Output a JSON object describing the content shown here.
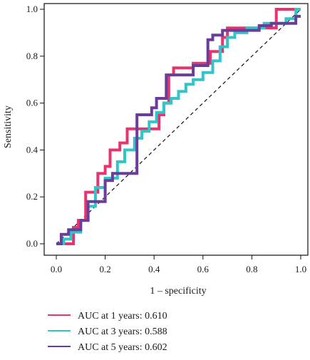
{
  "chart_data": {
    "type": "line",
    "title": "",
    "xlabel": "1 – specificity",
    "ylabel": "Sensitivity",
    "xlim": [
      0.0,
      1.0
    ],
    "ylim": [
      0.0,
      1.0
    ],
    "x_ticks": [
      "0.0",
      "0.2",
      "0.4",
      "0.6",
      "0.8",
      "1.0"
    ],
    "y_ticks": [
      "0.0",
      "0.2",
      "0.4",
      "0.6",
      "0.8",
      "1.0"
    ],
    "grid": false,
    "legend_position": "bottom-left, below plot",
    "reference_line": {
      "style": "dashed",
      "from": [
        0,
        0
      ],
      "to": [
        1,
        1
      ],
      "color": "#111111"
    },
    "series": [
      {
        "name": "AUC at 1 years: 0.610",
        "color": "#e8336d",
        "x": [
          0,
          0.07,
          0.07,
          0.09,
          0.09,
          0.12,
          0.12,
          0.17,
          0.17,
          0.2,
          0.2,
          0.22,
          0.22,
          0.26,
          0.26,
          0.29,
          0.29,
          0.42,
          0.42,
          0.44,
          0.44,
          0.46,
          0.46,
          0.48,
          0.48,
          0.56,
          0.56,
          0.63,
          0.63,
          0.68,
          0.68,
          0.7,
          0.7,
          0.9,
          0.9,
          1.0,
          1.0
        ],
        "y": [
          0,
          0,
          0.07,
          0.07,
          0.1,
          0.1,
          0.22,
          0.22,
          0.3,
          0.3,
          0.33,
          0.33,
          0.4,
          0.4,
          0.43,
          0.43,
          0.49,
          0.49,
          0.55,
          0.55,
          0.6,
          0.6,
          0.72,
          0.72,
          0.75,
          0.75,
          0.77,
          0.77,
          0.82,
          0.82,
          0.88,
          0.88,
          0.92,
          0.92,
          1.0,
          1.0,
          1.0
        ]
      },
      {
        "name": "AUC at 3 years: 0.588",
        "color": "#2fc5c9",
        "x": [
          0,
          0.03,
          0.03,
          0.06,
          0.06,
          0.1,
          0.1,
          0.13,
          0.13,
          0.16,
          0.16,
          0.2,
          0.2,
          0.25,
          0.25,
          0.28,
          0.28,
          0.32,
          0.32,
          0.35,
          0.35,
          0.38,
          0.38,
          0.41,
          0.41,
          0.44,
          0.44,
          0.47,
          0.47,
          0.5,
          0.5,
          0.53,
          0.53,
          0.56,
          0.56,
          0.6,
          0.6,
          0.64,
          0.64,
          0.67,
          0.67,
          0.7,
          0.7,
          0.73,
          0.73,
          0.78,
          0.78,
          0.85,
          0.85,
          0.94,
          0.94,
          0.98,
          0.98,
          1.0
        ],
        "y": [
          0,
          0,
          0.02,
          0.02,
          0.05,
          0.05,
          0.1,
          0.1,
          0.16,
          0.16,
          0.24,
          0.24,
          0.28,
          0.28,
          0.35,
          0.35,
          0.4,
          0.4,
          0.45,
          0.45,
          0.48,
          0.48,
          0.52,
          0.52,
          0.56,
          0.56,
          0.6,
          0.6,
          0.62,
          0.62,
          0.65,
          0.65,
          0.68,
          0.68,
          0.7,
          0.7,
          0.73,
          0.73,
          0.78,
          0.78,
          0.84,
          0.84,
          0.88,
          0.88,
          0.9,
          0.9,
          0.92,
          0.92,
          0.94,
          0.94,
          0.96,
          0.96,
          1.0,
          1.0
        ]
      },
      {
        "name": "AUC at 5 years: 0.602",
        "color": "#6a3d9a",
        "x": [
          0,
          0.02,
          0.02,
          0.05,
          0.05,
          0.1,
          0.1,
          0.13,
          0.13,
          0.2,
          0.2,
          0.23,
          0.23,
          0.33,
          0.33,
          0.39,
          0.39,
          0.41,
          0.41,
          0.45,
          0.45,
          0.56,
          0.56,
          0.62,
          0.62,
          0.64,
          0.64,
          0.68,
          0.68,
          0.83,
          0.83,
          0.88,
          0.88,
          0.98,
          0.98,
          1.0
        ],
        "y": [
          0,
          0,
          0.04,
          0.04,
          0.06,
          0.06,
          0.1,
          0.1,
          0.18,
          0.18,
          0.27,
          0.27,
          0.3,
          0.3,
          0.55,
          0.55,
          0.58,
          0.58,
          0.62,
          0.62,
          0.72,
          0.72,
          0.76,
          0.76,
          0.87,
          0.87,
          0.89,
          0.89,
          0.91,
          0.91,
          0.93,
          0.93,
          0.94,
          0.94,
          0.97,
          0.97
        ]
      }
    ]
  }
}
